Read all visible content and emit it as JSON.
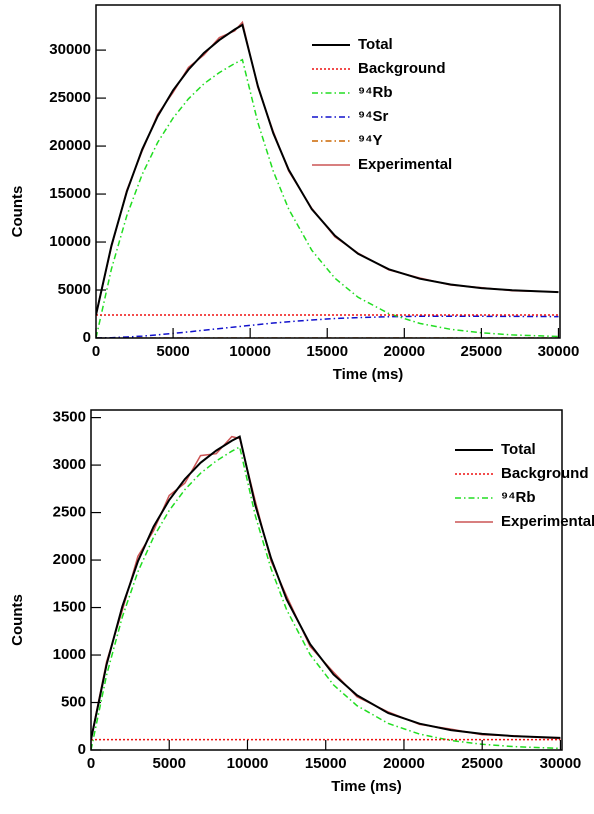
{
  "chart_data": [
    {
      "type": "line",
      "xlabel": "Time (ms)",
      "ylabel": "Counts",
      "x": [
        0,
        1000,
        2000,
        3000,
        4000,
        5000,
        6000,
        7000,
        8000,
        9000,
        9500,
        10500,
        11500,
        12500,
        14000,
        15500,
        17000,
        19000,
        21000,
        23000,
        25000,
        27000,
        30000
      ],
      "series": [
        {
          "name": "Total",
          "color": "#000000",
          "dash": "solid",
          "values": [
            2400,
            9610,
            15240,
            19650,
            23110,
            25810,
            27970,
            29700,
            31040,
            32150,
            32630,
            26240,
            21330,
            17530,
            13420,
            10660,
            8770,
            7160,
            6180,
            5580,
            5205,
            4977,
            4782
          ]
        },
        {
          "name": "Background",
          "color": "#ee1111",
          "dash": "dotted",
          "values": [
            2400,
            2400,
            2400,
            2400,
            2400,
            2400,
            2400,
            2400,
            2400,
            2400,
            2400,
            2400,
            2400,
            2400,
            2400,
            2400,
            2400,
            2400,
            2400,
            2400,
            2400,
            2400,
            2400
          ]
        },
        {
          "name": "⁹⁴Rb",
          "color": "#22dd22",
          "dash": "dashdot",
          "values": [
            0,
            7180,
            12740,
            17050,
            20380,
            22930,
            24930,
            26490,
            27660,
            28600,
            29000,
            22440,
            17370,
            13430,
            9140,
            6230,
            4240,
            2540,
            1520,
            910,
            545,
            327,
            152
          ]
        },
        {
          "name": "⁹⁴Sr",
          "color": "#1111cc",
          "dash": "dashdot",
          "values": [
            0,
            30,
            100,
            200,
            330,
            480,
            640,
            810,
            980,
            1150,
            1230,
            1400,
            1560,
            1700,
            1880,
            2030,
            2130,
            2220,
            2260,
            2270,
            2260,
            2250,
            2230
          ]
        },
        {
          "name": "⁹⁴Y",
          "color": "#cc6600",
          "dash": "dashdot",
          "values": [
            0,
            0,
            0,
            0,
            0,
            0,
            0,
            0,
            0,
            0,
            0,
            0,
            0,
            0,
            0,
            0,
            0,
            0,
            0,
            0,
            0,
            0,
            0
          ]
        },
        {
          "name": "Experimental",
          "color": "#cc5555",
          "dash": "solid",
          "values": [
            2500,
            9450,
            15400,
            19500,
            23300,
            25600,
            28200,
            29500,
            31300,
            32000,
            32900,
            26100,
            21500,
            17400,
            13500,
            10550,
            8850,
            7100,
            6250,
            5520,
            5250,
            4930,
            4800
          ]
        }
      ],
      "xlim": [
        0,
        30100
      ],
      "ylim": [
        0,
        34700
      ],
      "xticks": [
        0,
        5000,
        10000,
        15000,
        20000,
        25000,
        30000
      ],
      "yticks": [
        0,
        5000,
        10000,
        15000,
        20000,
        25000,
        30000
      ],
      "legend": "upper right"
    },
    {
      "type": "line",
      "xlabel": "Time (ms)",
      "ylabel": "Counts",
      "x": [
        0,
        1000,
        2000,
        3000,
        4000,
        5000,
        6000,
        7000,
        8000,
        9000,
        9500,
        10500,
        11500,
        12500,
        14000,
        15500,
        17000,
        19000,
        21000,
        23000,
        25000,
        27000,
        30000
      ],
      "series": [
        {
          "name": "Total",
          "color": "#000000",
          "dash": "solid",
          "values": [
            110,
            900,
            1510,
            1986,
            2352,
            2632,
            2852,
            3024,
            3153,
            3256,
            3300,
            2578,
            2021,
            1587,
            1115,
            795,
            576,
            389,
            277,
            210,
            170,
            146,
            127
          ]
        },
        {
          "name": "Background",
          "color": "#ee1111",
          "dash": "dotted",
          "values": [
            110,
            110,
            110,
            110,
            110,
            110,
            110,
            110,
            110,
            110,
            110,
            110,
            110,
            110,
            110,
            110,
            110,
            110,
            110,
            110,
            110,
            110,
            110
          ]
        },
        {
          "name": "⁹⁴Rb",
          "color": "#22dd22",
          "dash": "dashdot",
          "values": [
            0,
            790,
            1400,
            1876,
            2242,
            2522,
            2742,
            2914,
            3043,
            3146,
            3190,
            2468,
            1911,
            1477,
            1005,
            685,
            466,
            279,
            167,
            100,
            60,
            36,
            17
          ]
        },
        {
          "name": "Experimental",
          "color": "#cc5555",
          "dash": "solid",
          "values": [
            120,
            930,
            1470,
            2040,
            2310,
            2680,
            2810,
            3100,
            3120,
            3300,
            3280,
            2620,
            1990,
            1620,
            1090,
            820,
            560,
            400,
            270,
            220,
            160,
            150,
            120
          ]
        }
      ],
      "xlim": [
        0,
        30100
      ],
      "ylim": [
        0,
        3580
      ],
      "xticks": [
        0,
        5000,
        10000,
        15000,
        20000,
        25000,
        30000
      ],
      "yticks": [
        0,
        500,
        1000,
        1500,
        2000,
        2500,
        3000,
        3500
      ],
      "legend": "upper right"
    }
  ]
}
